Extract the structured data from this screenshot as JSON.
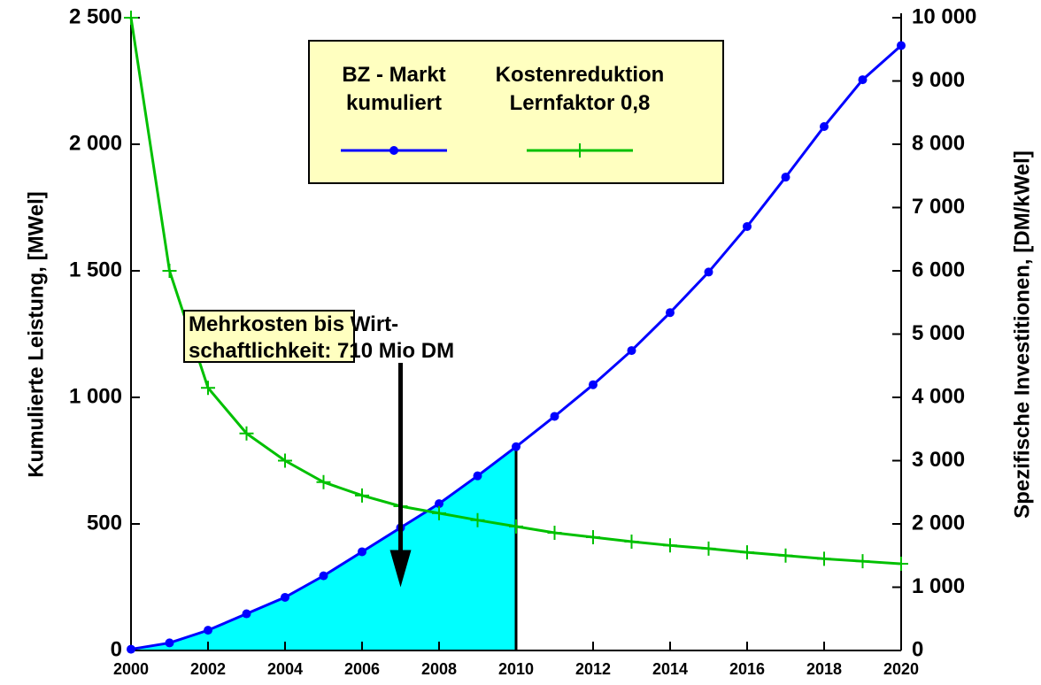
{
  "chart_data": {
    "type": "line",
    "x": [
      2000,
      2001,
      2002,
      2003,
      2004,
      2005,
      2006,
      2007,
      2008,
      2009,
      2010,
      2011,
      2012,
      2013,
      2014,
      2015,
      2016,
      2017,
      2018,
      2019,
      2020
    ],
    "series": [
      {
        "name": "BZ - Markt\nkumuliert",
        "color": "#0000ff",
        "marker": "circle",
        "fill_to_x": 2010,
        "fill_color": "#00ffff",
        "values": [
          5,
          30,
          80,
          145,
          210,
          295,
          390,
          485,
          580,
          690,
          805,
          925,
          1050,
          1185,
          1335,
          1495,
          1675,
          1870,
          2070,
          2255,
          2390
        ]
      },
      {
        "name": "Kostenreduktion\nLernfaktor 0,8",
        "color": "#00c000",
        "marker": "plus",
        "axis": "y2",
        "values": [
          10000,
          6000,
          4150,
          3430,
          3000,
          2660,
          2450,
          2280,
          2170,
          2060,
          1960,
          1860,
          1790,
          1720,
          1660,
          1610,
          1550,
          1500,
          1450,
          1410,
          1370
        ]
      }
    ],
    "ylabel": "Kumulierte Leistung, [MWel]",
    "y2label": "Spezifische Investitionen, [DM/kWel]",
    "xlim": [
      2000,
      2020
    ],
    "xticks": [
      2000,
      2002,
      2004,
      2006,
      2008,
      2010,
      2012,
      2014,
      2016,
      2018,
      2020
    ],
    "ylim": [
      0,
      2500
    ],
    "yticks": [
      0,
      500,
      {
        "value": 1000,
        "label": "1 000"
      },
      {
        "value": 1500,
        "label": "1 500"
      },
      {
        "value": 2000,
        "label": "2 000"
      },
      {
        "value": 2500,
        "label": "2 500"
      }
    ],
    "y2lim": [
      0,
      10000
    ],
    "y2ticks": [
      0,
      {
        "value": 1000,
        "label": "1 000"
      },
      {
        "value": 2000,
        "label": "2 000"
      },
      {
        "value": 3000,
        "label": "3 000"
      },
      {
        "value": 4000,
        "label": "4 000"
      },
      {
        "value": 5000,
        "label": "5 000"
      },
      {
        "value": 6000,
        "label": "6 000"
      },
      {
        "value": 7000,
        "label": "7 000"
      },
      {
        "value": 8000,
        "label": "8 000"
      },
      {
        "value": 9000,
        "label": "9 000"
      },
      {
        "value": 10000,
        "label": "10 000"
      }
    ],
    "legend": "top",
    "annotation": {
      "text": "Mehrkosten bis Wirt-\nschaftlichkeit: 710 Mio DM",
      "x": 2007,
      "y": 250
    }
  }
}
